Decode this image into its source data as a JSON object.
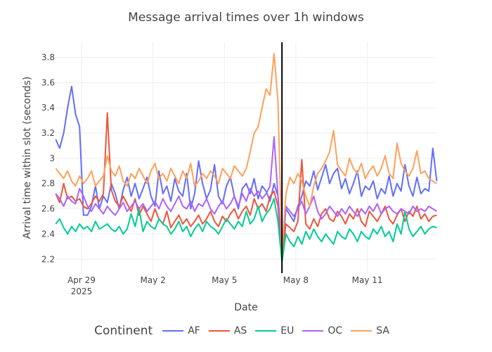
{
  "chart_data": {
    "type": "line",
    "title": "Message arrival times over 1h windows",
    "xlabel": "Date",
    "ylabel": "Arrival time within slot (seconds)",
    "x_start": "2025-04-27T22:00:00",
    "x_step_hours": 4,
    "xlim": [
      "2025-04-27T22:30:00",
      "2025-05-13T21:00:00"
    ],
    "ylim": [
      2.09,
      3.92
    ],
    "x_ticks": [
      {
        "date": "2025-04-29T00:00:00",
        "label": "Apr 29",
        "sublabel": "2025"
      },
      {
        "date": "2025-05-02T00:00:00",
        "label": "May 2"
      },
      {
        "date": "2025-05-05T00:00:00",
        "label": "May 5"
      },
      {
        "date": "2025-05-08T00:00:00",
        "label": "May 8"
      },
      {
        "date": "2025-05-11T00:00:00",
        "label": "May 11"
      }
    ],
    "y_ticks": [
      {
        "value": 2.2,
        "label": "2.2"
      },
      {
        "value": 2.4,
        "label": "2.4"
      },
      {
        "value": 2.6,
        "label": "2.6"
      },
      {
        "value": 2.8,
        "label": "2.8"
      },
      {
        "value": 3.0,
        "label": "3"
      },
      {
        "value": 3.2,
        "label": "3.2"
      },
      {
        "value": 3.4,
        "label": "3.4"
      },
      {
        "value": 3.6,
        "label": "3.6"
      },
      {
        "value": 3.8,
        "label": "3.8"
      }
    ],
    "grid": true,
    "vertical_marker": {
      "date": "2025-05-07T10:00:00",
      "color": "#000000"
    },
    "legend_title": "Continent",
    "legend_position": "bottom-center",
    "series": [
      {
        "name": "AF",
        "color": "#636efa",
        "values": [
          3.15,
          3.08,
          3.2,
          3.4,
          3.57,
          3.35,
          3.25,
          2.55,
          2.55,
          2.62,
          2.78,
          2.6,
          2.7,
          2.65,
          2.8,
          2.72,
          2.6,
          2.75,
          2.85,
          2.7,
          2.8,
          2.68,
          2.76,
          2.85,
          2.7,
          2.62,
          2.9,
          2.72,
          2.78,
          2.66,
          2.84,
          2.74,
          2.7,
          2.88,
          2.6,
          2.72,
          2.98,
          2.8,
          2.68,
          2.75,
          2.95,
          2.7,
          2.64,
          2.78,
          2.85,
          2.7,
          2.6,
          2.76,
          2.8,
          2.72,
          2.84,
          2.68,
          2.78,
          2.74,
          2.66,
          2.8,
          2.7,
          2.22,
          2.6,
          2.55,
          2.5,
          2.62,
          2.7,
          2.82,
          2.78,
          2.9,
          2.75,
          2.85,
          2.95,
          2.8,
          2.88,
          2.92,
          2.76,
          2.84,
          2.72,
          2.8,
          2.9,
          2.7,
          2.78,
          2.75,
          2.82,
          2.68,
          2.76,
          2.72,
          2.86,
          2.7,
          2.8,
          2.74,
          2.95,
          2.78,
          2.7,
          2.85,
          2.72,
          2.76,
          2.74,
          3.08,
          2.82
        ]
      },
      {
        "name": "AS",
        "color": "#ef553b",
        "values": [
          2.72,
          2.65,
          2.8,
          2.68,
          2.7,
          2.66,
          2.68,
          2.62,
          2.6,
          2.64,
          2.7,
          2.66,
          2.72,
          3.36,
          2.75,
          2.66,
          2.62,
          2.7,
          2.64,
          2.58,
          2.68,
          2.55,
          2.62,
          2.56,
          2.5,
          2.6,
          2.52,
          2.48,
          2.58,
          2.45,
          2.5,
          2.55,
          2.48,
          2.52,
          2.46,
          2.5,
          2.55,
          2.48,
          2.52,
          2.58,
          2.5,
          2.46,
          2.54,
          2.5,
          2.56,
          2.6,
          2.52,
          2.58,
          2.62,
          2.55,
          2.68,
          2.6,
          2.64,
          2.58,
          2.7,
          2.74,
          2.62,
          2.2,
          2.48,
          2.45,
          2.42,
          2.5,
          2.99,
          2.48,
          2.44,
          2.52,
          2.46,
          2.56,
          2.6,
          2.52,
          2.5,
          2.58,
          2.54,
          2.48,
          2.56,
          2.52,
          2.6,
          2.5,
          2.46,
          2.58,
          2.54,
          2.5,
          2.56,
          2.62,
          2.52,
          2.48,
          2.55,
          2.6,
          2.5,
          2.58,
          2.54,
          2.62,
          2.52,
          2.56,
          2.5,
          2.54,
          2.55
        ]
      },
      {
        "name": "EU",
        "color": "#00cc96",
        "values": [
          2.48,
          2.52,
          2.45,
          2.4,
          2.46,
          2.42,
          2.48,
          2.44,
          2.46,
          2.42,
          2.5,
          2.44,
          2.46,
          2.48,
          2.44,
          2.42,
          2.46,
          2.4,
          2.44,
          2.56,
          2.46,
          2.6,
          2.42,
          2.5,
          2.46,
          2.44,
          2.52,
          2.48,
          2.46,
          2.4,
          2.44,
          2.5,
          2.42,
          2.46,
          2.38,
          2.44,
          2.48,
          2.42,
          2.5,
          2.46,
          2.44,
          2.4,
          2.46,
          2.52,
          2.48,
          2.44,
          2.5,
          2.46,
          2.58,
          2.48,
          2.52,
          2.62,
          2.5,
          2.56,
          2.6,
          2.68,
          2.5,
          2.18,
          2.4,
          2.34,
          2.3,
          2.38,
          2.32,
          2.42,
          2.36,
          2.44,
          2.38,
          2.34,
          2.4,
          2.36,
          2.32,
          2.42,
          2.38,
          2.36,
          2.44,
          2.4,
          2.34,
          2.42,
          2.38,
          2.36,
          2.44,
          2.4,
          2.46,
          2.38,
          2.42,
          2.34,
          2.48,
          2.4,
          2.58,
          2.44,
          2.38,
          2.42,
          2.46,
          2.4,
          2.44,
          2.46,
          2.45
        ]
      },
      {
        "name": "OC",
        "color": "#ab63fa",
        "values": [
          2.72,
          2.68,
          2.62,
          2.7,
          2.66,
          2.64,
          2.76,
          2.7,
          2.62,
          2.58,
          2.64,
          2.6,
          2.56,
          2.62,
          2.58,
          2.55,
          2.6,
          2.65,
          2.58,
          2.62,
          2.66,
          2.6,
          2.64,
          2.58,
          2.62,
          2.66,
          2.6,
          2.68,
          2.62,
          2.58,
          2.64,
          2.7,
          2.62,
          2.6,
          2.66,
          2.58,
          2.64,
          2.62,
          2.68,
          2.6,
          2.56,
          2.62,
          2.66,
          2.6,
          2.64,
          2.7,
          2.62,
          2.72,
          2.66,
          2.76,
          2.7,
          2.74,
          2.68,
          2.72,
          2.78,
          3.17,
          2.7,
          2.3,
          2.62,
          2.58,
          2.54,
          2.6,
          2.66,
          2.56,
          2.62,
          2.7,
          2.58,
          2.52,
          2.56,
          2.62,
          2.58,
          2.54,
          2.6,
          2.56,
          2.62,
          2.58,
          2.54,
          2.6,
          2.56,
          2.62,
          2.58,
          2.64,
          2.56,
          2.6,
          2.62,
          2.58,
          2.56,
          2.6,
          2.58,
          2.56,
          2.62,
          2.58,
          2.6,
          2.58,
          2.62,
          2.6,
          2.58
        ]
      },
      {
        "name": "SA",
        "color": "#ffa15a",
        "values": [
          2.92,
          2.88,
          2.84,
          2.9,
          2.82,
          2.78,
          2.86,
          2.8,
          2.84,
          2.9,
          2.78,
          2.82,
          2.86,
          3.02,
          2.9,
          2.86,
          2.94,
          2.82,
          2.78,
          2.88,
          2.84,
          2.92,
          2.86,
          2.8,
          2.9,
          2.96,
          2.84,
          2.88,
          2.82,
          2.92,
          2.86,
          2.8,
          2.9,
          2.84,
          2.96,
          2.78,
          2.82,
          2.88,
          2.84,
          2.9,
          2.86,
          2.8,
          2.92,
          2.88,
          2.84,
          2.94,
          2.9,
          2.86,
          2.92,
          3.05,
          3.2,
          3.25,
          3.4,
          3.55,
          3.5,
          3.83,
          3.45,
          2.25,
          2.72,
          2.85,
          2.8,
          2.88,
          2.82,
          2.7,
          2.62,
          2.78,
          2.88,
          2.92,
          2.98,
          3.05,
          3.22,
          2.95,
          2.9,
          2.86,
          3.0,
          2.92,
          2.88,
          2.96,
          2.84,
          2.9,
          2.94,
          2.86,
          2.92,
          3.02,
          2.88,
          2.84,
          3.12,
          2.96,
          2.9,
          2.86,
          2.92,
          3.06,
          2.88,
          2.9,
          2.84,
          2.82,
          2.8
        ]
      }
    ]
  }
}
